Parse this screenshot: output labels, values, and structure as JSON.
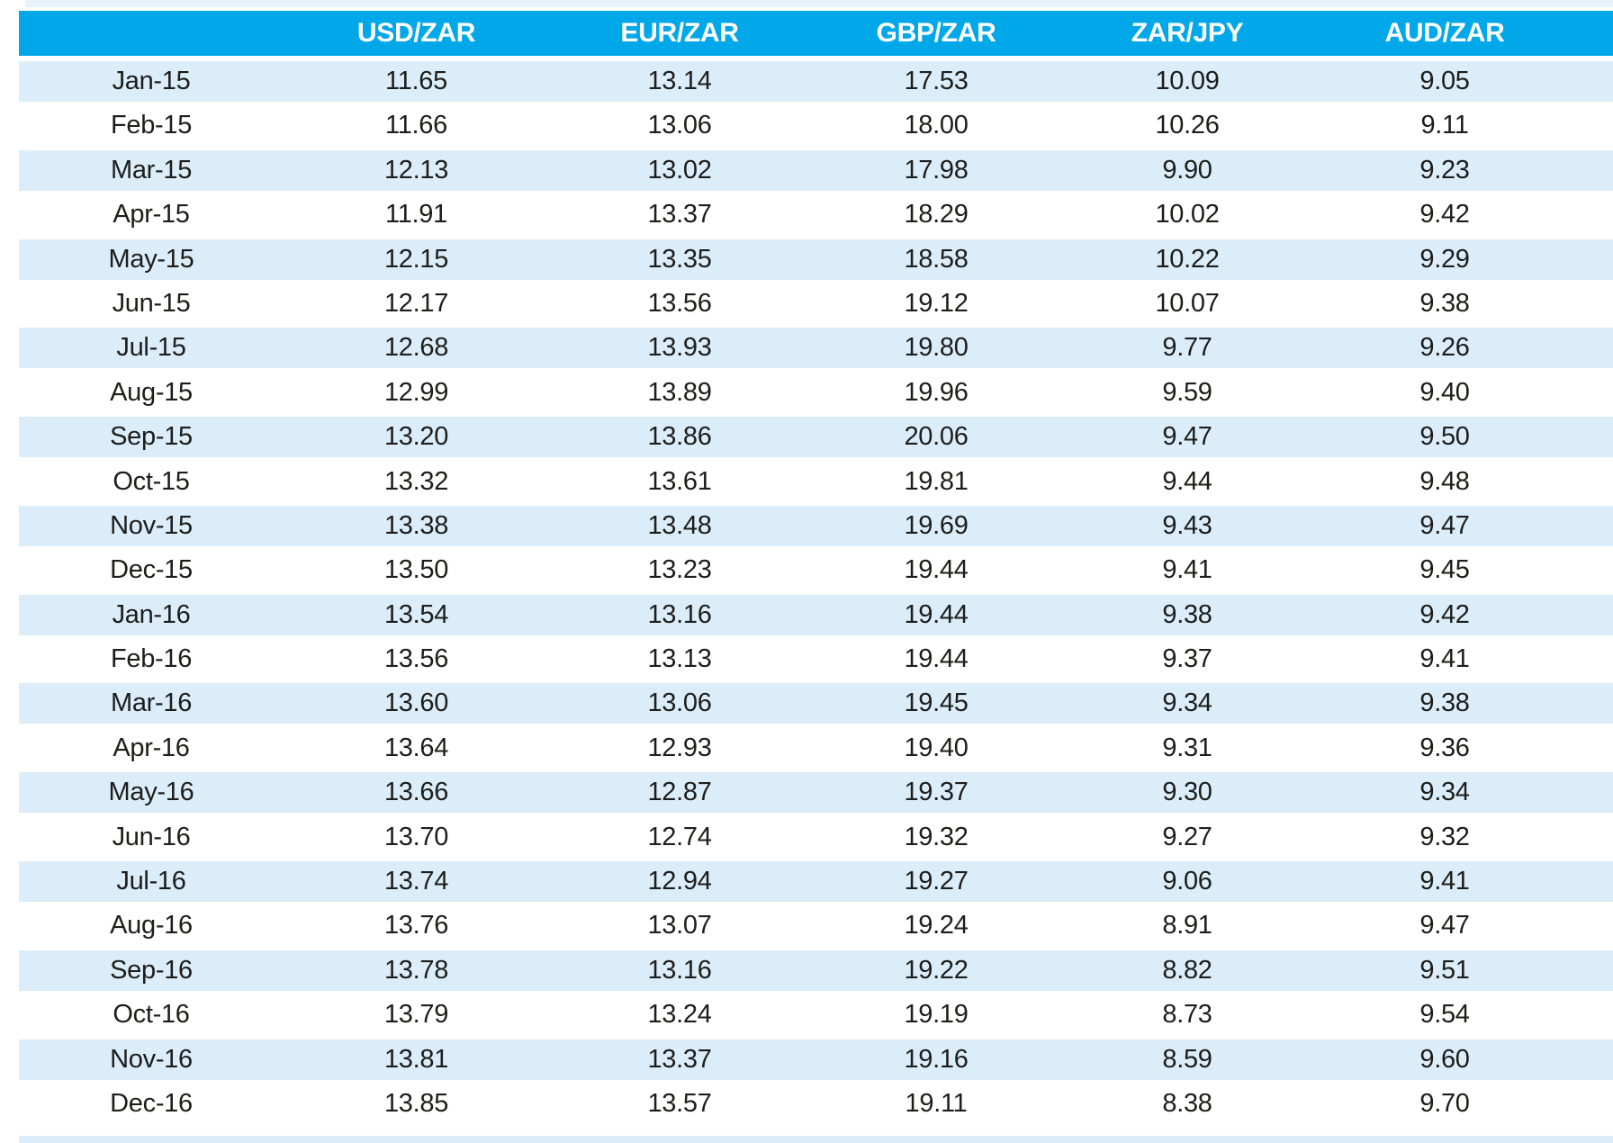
{
  "colors": {
    "header_bg": "#00a8ea",
    "row_alt_bg": "#dbedf9",
    "row_bg": "#ffffff",
    "sliver_bg": "#e7f3fb",
    "text": "#1d1d1b",
    "header_text": "#ffffff"
  },
  "table": {
    "columns": [
      "",
      "USD/ZAR",
      "EUR/ZAR",
      "GBP/ZAR",
      "ZAR/JPY",
      "AUD/ZAR"
    ],
    "rows": [
      {
        "month": "Jan-15",
        "values": [
          "11.65",
          "13.14",
          "17.53",
          "10.09",
          "9.05"
        ]
      },
      {
        "month": "Feb-15",
        "values": [
          "11.66",
          "13.06",
          "18.00",
          "10.26",
          "9.11"
        ]
      },
      {
        "month": "Mar-15",
        "values": [
          "12.13",
          "13.02",
          "17.98",
          "9.90",
          "9.23"
        ]
      },
      {
        "month": "Apr-15",
        "values": [
          "11.91",
          "13.37",
          "18.29",
          "10.02",
          "9.42"
        ]
      },
      {
        "month": "May-15",
        "values": [
          "12.15",
          "13.35",
          "18.58",
          "10.22",
          "9.29"
        ]
      },
      {
        "month": "Jun-15",
        "values": [
          "12.17",
          "13.56",
          "19.12",
          "10.07",
          "9.38"
        ]
      },
      {
        "month": "Jul-15",
        "values": [
          "12.68",
          "13.93",
          "19.80",
          "9.77",
          "9.26"
        ]
      },
      {
        "month": "Aug-15",
        "values": [
          "12.99",
          "13.89",
          "19.96",
          "9.59",
          "9.40"
        ]
      },
      {
        "month": "Sep-15",
        "values": [
          "13.20",
          "13.86",
          "20.06",
          "9.47",
          "9.50"
        ]
      },
      {
        "month": "Oct-15",
        "values": [
          "13.32",
          "13.61",
          "19.81",
          "9.44",
          "9.48"
        ]
      },
      {
        "month": "Nov-15",
        "values": [
          "13.38",
          "13.48",
          "19.69",
          "9.43",
          "9.47"
        ]
      },
      {
        "month": "Dec-15",
        "values": [
          "13.50",
          "13.23",
          "19.44",
          "9.41",
          "9.45"
        ]
      },
      {
        "month": "Jan-16",
        "values": [
          "13.54",
          "13.16",
          "19.44",
          "9.38",
          "9.42"
        ]
      },
      {
        "month": "Feb-16",
        "values": [
          "13.56",
          "13.13",
          "19.44",
          "9.37",
          "9.41"
        ]
      },
      {
        "month": "Mar-16",
        "values": [
          "13.60",
          "13.06",
          "19.45",
          "9.34",
          "9.38"
        ]
      },
      {
        "month": "Apr-16",
        "values": [
          "13.64",
          "12.93",
          "19.40",
          "9.31",
          "9.36"
        ]
      },
      {
        "month": "May-16",
        "values": [
          "13.66",
          "12.87",
          "19.37",
          "9.30",
          "9.34"
        ]
      },
      {
        "month": "Jun-16",
        "values": [
          "13.70",
          "12.74",
          "19.32",
          "9.27",
          "9.32"
        ]
      },
      {
        "month": "Jul-16",
        "values": [
          "13.74",
          "12.94",
          "19.27",
          "9.06",
          "9.41"
        ]
      },
      {
        "month": "Aug-16",
        "values": [
          "13.76",
          "13.07",
          "19.24",
          "8.91",
          "9.47"
        ]
      },
      {
        "month": "Sep-16",
        "values": [
          "13.78",
          "13.16",
          "19.22",
          "8.82",
          "9.51"
        ]
      },
      {
        "month": "Oct-16",
        "values": [
          "13.79",
          "13.24",
          "19.19",
          "8.73",
          "9.54"
        ]
      },
      {
        "month": "Nov-16",
        "values": [
          "13.81",
          "13.37",
          "19.16",
          "8.59",
          "9.60"
        ]
      },
      {
        "month": "Dec-16",
        "values": [
          "13.85",
          "13.57",
          "19.11",
          "8.38",
          "9.70"
        ]
      }
    ]
  },
  "chart_data": {
    "type": "table",
    "title": "",
    "categories": [
      "Jan-15",
      "Feb-15",
      "Mar-15",
      "Apr-15",
      "May-15",
      "Jun-15",
      "Jul-15",
      "Aug-15",
      "Sep-15",
      "Oct-15",
      "Nov-15",
      "Dec-15",
      "Jan-16",
      "Feb-16",
      "Mar-16",
      "Apr-16",
      "May-16",
      "Jun-16",
      "Jul-16",
      "Aug-16",
      "Sep-16",
      "Oct-16",
      "Nov-16",
      "Dec-16"
    ],
    "series": [
      {
        "name": "USD/ZAR",
        "values": [
          11.65,
          11.66,
          12.13,
          11.91,
          12.15,
          12.17,
          12.68,
          12.99,
          13.2,
          13.32,
          13.38,
          13.5,
          13.54,
          13.56,
          13.6,
          13.64,
          13.66,
          13.7,
          13.74,
          13.76,
          13.78,
          13.79,
          13.81,
          13.85
        ]
      },
      {
        "name": "EUR/ZAR",
        "values": [
          13.14,
          13.06,
          13.02,
          13.37,
          13.35,
          13.56,
          13.93,
          13.89,
          13.86,
          13.61,
          13.48,
          13.23,
          13.16,
          13.13,
          13.06,
          12.93,
          12.87,
          12.74,
          12.94,
          13.07,
          13.16,
          13.24,
          13.37,
          13.57
        ]
      },
      {
        "name": "GBP/ZAR",
        "values": [
          17.53,
          18.0,
          17.98,
          18.29,
          18.58,
          19.12,
          19.8,
          19.96,
          20.06,
          19.81,
          19.69,
          19.44,
          19.44,
          19.44,
          19.45,
          19.4,
          19.37,
          19.32,
          19.27,
          19.24,
          19.22,
          19.19,
          19.16,
          19.11
        ]
      },
      {
        "name": "ZAR/JPY",
        "values": [
          10.09,
          10.26,
          9.9,
          10.02,
          10.22,
          10.07,
          9.77,
          9.59,
          9.47,
          9.44,
          9.43,
          9.41,
          9.38,
          9.37,
          9.34,
          9.31,
          9.3,
          9.27,
          9.06,
          8.91,
          8.82,
          8.73,
          8.59,
          8.38
        ]
      },
      {
        "name": "AUD/ZAR",
        "values": [
          9.05,
          9.11,
          9.23,
          9.42,
          9.29,
          9.38,
          9.26,
          9.4,
          9.5,
          9.48,
          9.47,
          9.45,
          9.42,
          9.41,
          9.38,
          9.36,
          9.34,
          9.32,
          9.41,
          9.47,
          9.51,
          9.54,
          9.6,
          9.7
        ]
      }
    ],
    "layout": {
      "striped_rows": true,
      "header_position": "top",
      "grid": false
    }
  }
}
